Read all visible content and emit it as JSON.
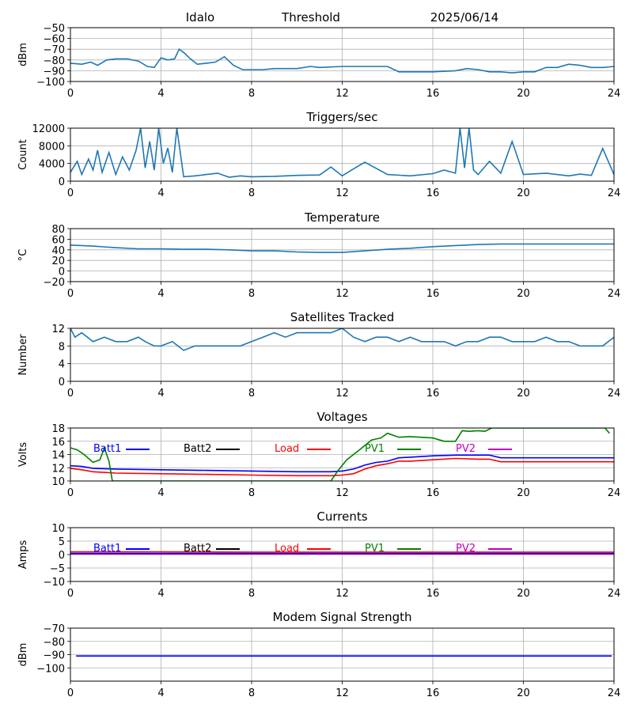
{
  "header": {
    "station": "Idalo",
    "subtitle": "Threshold",
    "date": "2025/06/14"
  },
  "colors": {
    "default_line": "#1f77b4",
    "Batt1": "#0000ff",
    "Batt2": "#000000",
    "Load": "#ff0000",
    "PV1": "#008000",
    "PV2": "#bf00bf",
    "grid": "#b0b0b0"
  },
  "chart_data": [
    {
      "type": "line",
      "title": "",
      "ylabel": "dBm",
      "xlim": [
        0,
        24
      ],
      "ylim": [
        -100,
        -50
      ],
      "xticks": [
        "0",
        "4",
        "8",
        "12",
        "16",
        "20",
        "24"
      ],
      "yticks": [
        "−50",
        "−60",
        "−70",
        "−80",
        "−90",
        "−100"
      ],
      "series": [
        {
          "color": "#1f77b4",
          "x": [
            0,
            0.5,
            0.9,
            1.2,
            1.6,
            2.0,
            2.5,
            3.0,
            3.4,
            3.7,
            4.0,
            4.3,
            4.6,
            4.8,
            5.0,
            5.3,
            5.6,
            6.0,
            6.4,
            6.8,
            7.2,
            7.6,
            8.0,
            8.5,
            9.0,
            9.5,
            10.0,
            10.6,
            11.0,
            12.0,
            13.0,
            14.0,
            14.5,
            15.0,
            16.0,
            17.0,
            17.5,
            18.0,
            18.5,
            19.0,
            19.5,
            20.0,
            20.5,
            21.0,
            21.5,
            22.0,
            22.5,
            23.0,
            23.5,
            24.0
          ],
          "y": [
            -83,
            -84,
            -82,
            -85,
            -80,
            -79,
            -79,
            -81,
            -86,
            -87,
            -78,
            -80,
            -79,
            -70,
            -73,
            -79,
            -84,
            -83,
            -82,
            -77,
            -85,
            -89,
            -89,
            -89,
            -88,
            -88,
            -88,
            -86,
            -87,
            -86,
            -86,
            -86,
            -91,
            -91,
            -91,
            -90,
            -88,
            -89,
            -91,
            -91,
            -92,
            -91,
            -91,
            -87,
            -87,
            -84,
            -85,
            -87,
            -87,
            -86
          ]
        }
      ]
    },
    {
      "type": "line",
      "title": "Triggers/sec",
      "ylabel": "Count",
      "xlim": [
        0,
        24
      ],
      "ylim": [
        0,
        12000
      ],
      "xticks": [
        "0",
        "4",
        "8",
        "12",
        "16",
        "20",
        "24"
      ],
      "yticks": [
        "0",
        "4000",
        "8000",
        "12000"
      ],
      "series": [
        {
          "color": "#1f77b4",
          "x": [
            0,
            0.3,
            0.5,
            0.8,
            1.0,
            1.2,
            1.4,
            1.7,
            2.0,
            2.3,
            2.6,
            2.9,
            3.1,
            3.3,
            3.5,
            3.7,
            3.9,
            4.1,
            4.3,
            4.5,
            4.7,
            5.0,
            5.5,
            6.0,
            6.5,
            7.0,
            7.5,
            8.0,
            9.0,
            10.0,
            11.0,
            11.5,
            12.0,
            12.5,
            13.0,
            14.0,
            15.0,
            16.0,
            16.5,
            17.0,
            17.2,
            17.4,
            17.6,
            17.8,
            18.0,
            18.5,
            19.0,
            19.5,
            20.0,
            21.0,
            22.0,
            22.5,
            23.0,
            23.5,
            24.0
          ],
          "y": [
            2000,
            4500,
            1500,
            5000,
            2500,
            7000,
            2000,
            6500,
            1500,
            5500,
            2500,
            7000,
            12000,
            3000,
            9000,
            2500,
            12000,
            4000,
            7500,
            2000,
            12000,
            1000,
            1200,
            1500,
            1800,
            900,
            1200,
            1000,
            1100,
            1300,
            1400,
            3200,
            1200,
            2800,
            4300,
            1500,
            1200,
            1700,
            2500,
            1800,
            12000,
            3000,
            12000,
            2500,
            1500,
            4500,
            1800,
            9000,
            1500,
            1800,
            1200,
            1600,
            1300,
            7400,
            1500
          ]
        }
      ]
    },
    {
      "type": "line",
      "title": "Temperature",
      "ylabel": "°C",
      "xlim": [
        0,
        24
      ],
      "ylim": [
        -20,
        80
      ],
      "xticks": [
        "0",
        "4",
        "8",
        "12",
        "16",
        "20",
        "24"
      ],
      "yticks": [
        "−20",
        "0",
        "20",
        "40",
        "60",
        "80"
      ],
      "series": [
        {
          "color": "#1f77b4",
          "x": [
            0,
            1,
            2,
            3,
            4,
            5,
            6,
            7,
            8,
            9,
            10,
            11,
            12,
            13,
            14,
            15,
            16,
            17,
            18,
            19,
            20,
            21,
            22,
            23,
            24
          ],
          "y": [
            49,
            47,
            44,
            42,
            42,
            41,
            41,
            40,
            38,
            38,
            36,
            35,
            35,
            38,
            41,
            43,
            46,
            48,
            50,
            51,
            51,
            51,
            51,
            51,
            51
          ]
        }
      ]
    },
    {
      "type": "line",
      "title": "Satellites Tracked",
      "ylabel": "Number",
      "xlim": [
        0,
        24
      ],
      "ylim": [
        0,
        12
      ],
      "xticks": [
        "0",
        "4",
        "8",
        "12",
        "16",
        "20",
        "24"
      ],
      "yticks": [
        "0",
        "4",
        "8",
        "12"
      ],
      "series": [
        {
          "color": "#1f77b4",
          "x": [
            0,
            0.2,
            0.5,
            1.0,
            1.5,
            2.0,
            2.5,
            3.0,
            3.3,
            3.7,
            4.0,
            4.5,
            5.0,
            5.5,
            6.0,
            6.5,
            7.0,
            7.5,
            8.0,
            8.5,
            9.0,
            9.5,
            10.0,
            10.5,
            11.0,
            11.5,
            12.0,
            12.5,
            13.0,
            13.5,
            14.0,
            14.5,
            15.0,
            15.5,
            16.0,
            16.5,
            17.0,
            17.5,
            18.0,
            18.5,
            19.0,
            19.5,
            20.0,
            20.5,
            21.0,
            21.5,
            22.0,
            22.5,
            23.0,
            23.5,
            24.0
          ],
          "y": [
            12,
            10,
            11,
            9,
            10,
            9,
            9,
            10,
            9,
            8,
            8,
            9,
            7,
            8,
            8,
            8,
            8,
            8,
            9,
            10,
            11,
            10,
            11,
            11,
            11,
            11,
            12,
            10,
            9,
            10,
            10,
            9,
            10,
            9,
            9,
            9,
            8,
            9,
            9,
            10,
            10,
            9,
            9,
            9,
            10,
            9,
            9,
            8,
            8,
            8,
            10
          ]
        }
      ]
    },
    {
      "type": "line",
      "title": "Voltages",
      "ylabel": "Volts",
      "xlim": [
        0,
        24
      ],
      "ylim": [
        10,
        18
      ],
      "xticks": [
        "0",
        "4",
        "8",
        "12",
        "16",
        "20",
        "24"
      ],
      "yticks": [
        "10",
        "12",
        "14",
        "16",
        "18"
      ],
      "legend": [
        "Batt1",
        "Batt2",
        "Load",
        "PV1",
        "PV2"
      ],
      "series": [
        {
          "name": "Batt1",
          "color": "#0000ff",
          "x": [
            0,
            0.5,
            1,
            2,
            4,
            6,
            8,
            10,
            11.5,
            12,
            12.5,
            13,
            13.5,
            14,
            14.5,
            15,
            16,
            17,
            18,
            18.5,
            19,
            20,
            22,
            24
          ],
          "y": [
            12.3,
            12.2,
            11.9,
            11.8,
            11.7,
            11.6,
            11.5,
            11.4,
            11.4,
            11.5,
            11.8,
            12.4,
            12.8,
            13.0,
            13.5,
            13.6,
            13.8,
            13.9,
            13.9,
            13.9,
            13.5,
            13.5,
            13.5,
            13.5
          ]
        },
        {
          "name": "Load",
          "color": "#ff0000",
          "x": [
            0,
            0.5,
            1,
            2,
            4,
            6,
            8,
            10,
            11.5,
            12,
            12.5,
            13,
            13.5,
            14,
            14.5,
            15,
            16,
            17,
            18,
            18.5,
            19,
            20,
            22,
            24
          ],
          "y": [
            11.9,
            11.7,
            11.4,
            11.2,
            11.1,
            11.0,
            10.9,
            10.8,
            10.8,
            10.9,
            11.1,
            11.8,
            12.3,
            12.6,
            13.0,
            13.0,
            13.2,
            13.4,
            13.3,
            13.3,
            12.9,
            12.9,
            12.9,
            12.9
          ]
        },
        {
          "name": "PV1",
          "color": "#008000",
          "x": [
            0,
            0.3,
            0.6,
            1.0,
            1.3,
            1.5,
            1.7,
            1.85,
            11.5,
            11.8,
            12.2,
            12.8,
            13.3,
            13.7,
            14.0,
            14.5,
            15.0,
            16.0,
            16.5,
            17.0,
            17.3,
            17.6,
            18.0,
            18.3,
            18.6,
            23.3,
            23.6,
            23.8
          ],
          "y": [
            15.0,
            14.7,
            14.0,
            12.8,
            13.2,
            15.0,
            13.0,
            10.0,
            10.0,
            11.5,
            13.2,
            14.8,
            16.2,
            16.5,
            17.2,
            16.6,
            16.7,
            16.5,
            16.0,
            16.0,
            17.6,
            17.5,
            17.6,
            17.5,
            18.0,
            18.0,
            18.0,
            17.2
          ]
        }
      ]
    },
    {
      "type": "line",
      "title": "Currents",
      "ylabel": "Amps",
      "xlim": [
        0,
        24
      ],
      "ylim": [
        -10,
        10
      ],
      "xticks": [
        "0",
        "4",
        "8",
        "12",
        "16",
        "20",
        "24"
      ],
      "yticks": [
        "−10",
        "−5",
        "0",
        "5",
        "10"
      ],
      "legend": [
        "Batt1",
        "Batt2",
        "Load",
        "PV1",
        "PV2"
      ],
      "series": [
        {
          "name": "PV2",
          "color": "#bf00bf",
          "x": [
            0,
            24
          ],
          "y": [
            0.2,
            0.2
          ]
        },
        {
          "name": "Batt1",
          "color": "#0000ff",
          "x": [
            0,
            4,
            8,
            12,
            16,
            20,
            24
          ],
          "y": [
            0.4,
            0.4,
            0.4,
            0.4,
            0.4,
            0.4,
            0.4
          ]
        },
        {
          "name": "Load",
          "color": "#ff0000",
          "x": [
            0,
            4,
            8,
            12,
            16,
            20,
            24
          ],
          "y": [
            1.0,
            1.0,
            0.9,
            0.9,
            0.9,
            0.9,
            0.9
          ]
        }
      ]
    },
    {
      "type": "line",
      "title": "Modem Signal Strength",
      "ylabel": "dBm",
      "xlim": [
        0,
        24
      ],
      "ylim": [
        -110,
        -70
      ],
      "xticks": [
        "0",
        "4",
        "8",
        "12",
        "16",
        "20",
        "24"
      ],
      "yticks": [
        "−70",
        "−80",
        "−90",
        "−100"
      ],
      "series": [
        {
          "color": "#0000ff",
          "x": [
            0.25,
            23.9
          ],
          "y": [
            -91,
            -91
          ]
        }
      ]
    }
  ]
}
